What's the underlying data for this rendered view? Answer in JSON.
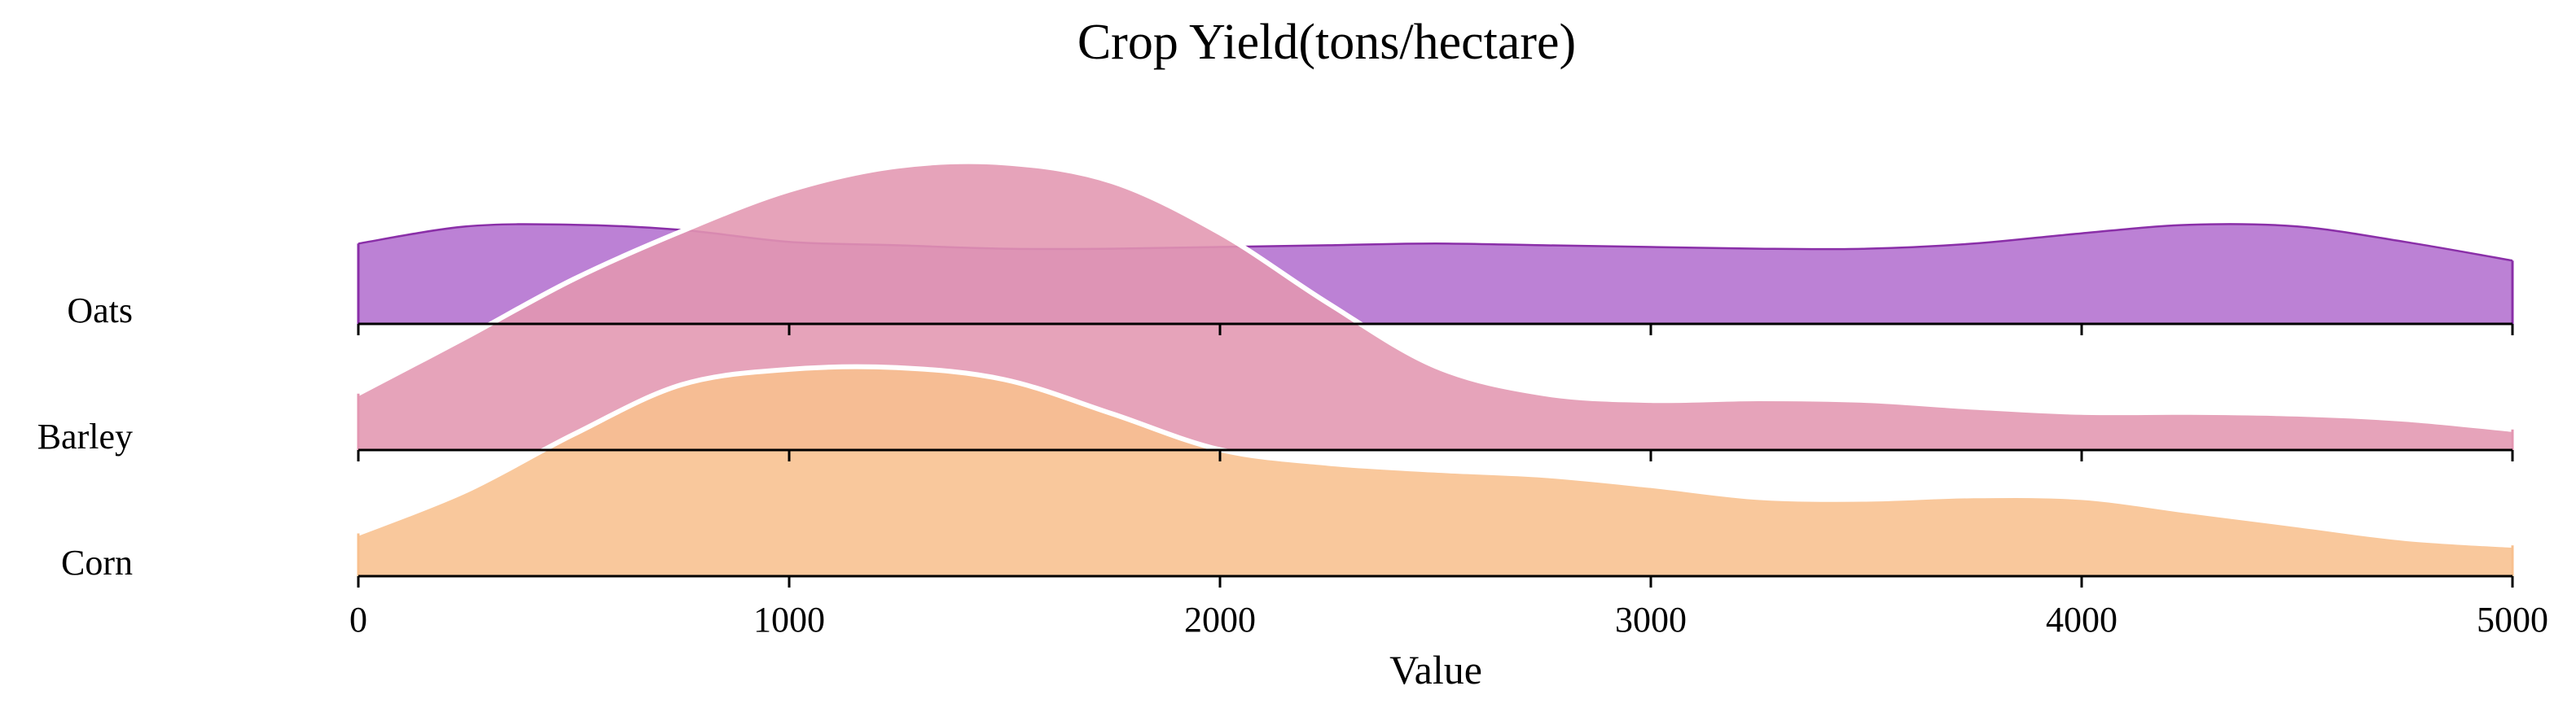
{
  "chart_data": {
    "type": "ridgeline",
    "title": "Crop Yield(tons/hectare)",
    "xlabel": "Value",
    "ylabel": "",
    "xlim": [
      0,
      5000
    ],
    "xticks": [
      0,
      1000,
      2000,
      3000,
      4000,
      5000
    ],
    "x": [
      0,
      250,
      500,
      750,
      1000,
      1250,
      1500,
      1750,
      2000,
      2250,
      2500,
      2750,
      3000,
      3250,
      3500,
      3750,
      4000,
      4250,
      4500,
      4750,
      5000
    ],
    "grid": false,
    "series": [
      {
        "name": "Oats",
        "color": "#b36fcf",
        "edge_color": "#8a2fa8",
        "values": [
          0.47,
          0.57,
          0.58,
          0.55,
          0.48,
          0.46,
          0.44,
          0.44,
          0.45,
          0.46,
          0.47,
          0.46,
          0.45,
          0.44,
          0.44,
          0.47,
          0.53,
          0.58,
          0.57,
          0.48,
          0.37
        ]
      },
      {
        "name": "Barley",
        "color": "#e396b1",
        "edge_color": "#ffffff",
        "values": [
          0.33,
          0.66,
          1.0,
          1.28,
          1.52,
          1.66,
          1.68,
          1.57,
          1.27,
          0.86,
          0.49,
          0.33,
          0.29,
          0.3,
          0.29,
          0.25,
          0.22,
          0.22,
          0.21,
          0.18,
          0.12
        ]
      },
      {
        "name": "Corn",
        "color": "#f8c08e",
        "edge_color": "#ffffff",
        "values": [
          0.25,
          0.5,
          0.83,
          1.12,
          1.21,
          1.22,
          1.15,
          0.95,
          0.74,
          0.66,
          0.62,
          0.59,
          0.53,
          0.46,
          0.45,
          0.47,
          0.46,
          0.38,
          0.3,
          0.22,
          0.18
        ]
      }
    ]
  }
}
